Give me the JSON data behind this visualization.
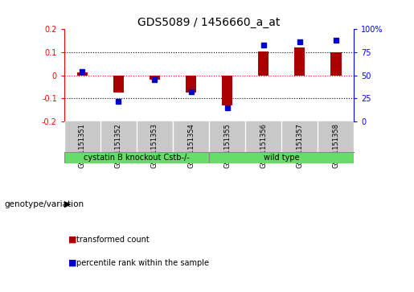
{
  "title": "GDS5089 / 1456660_a_at",
  "samples": [
    "GSM1151351",
    "GSM1151352",
    "GSM1151353",
    "GSM1151354",
    "GSM1151355",
    "GSM1151356",
    "GSM1151357",
    "GSM1151358"
  ],
  "red_bars": [
    0.012,
    -0.075,
    -0.018,
    -0.075,
    -0.13,
    0.105,
    0.12,
    0.1
  ],
  "blue_dots": [
    54,
    22,
    45,
    32,
    15,
    83,
    86,
    88
  ],
  "ylim_left": [
    -0.2,
    0.2
  ],
  "ylim_right": [
    0,
    100
  ],
  "yticks_left": [
    -0.2,
    -0.1,
    0.0,
    0.1,
    0.2
  ],
  "ytick_labels_left": [
    "-0.2",
    "-0.1",
    "0",
    "0.1",
    "0.2"
  ],
  "yticks_right": [
    0,
    25,
    50,
    75,
    100
  ],
  "ytick_labels_right": [
    "0",
    "25",
    "50",
    "75",
    "100%"
  ],
  "groups": [
    {
      "label": "cystatin B knockout Cstb-/-",
      "start": 0,
      "end": 4
    },
    {
      "label": "wild type",
      "start": 4,
      "end": 8
    }
  ],
  "bar_color": "#AA0000",
  "dot_color": "#0000CC",
  "bg_color": "#FFFFFF",
  "zero_line_color": "#FF0000",
  "sample_bg": "#C8C8C8",
  "group_color": "#66DD66",
  "legend_red_label": "transformed count",
  "legend_blue_label": "percentile rank within the sample",
  "genotype_label": "genotype/variation"
}
